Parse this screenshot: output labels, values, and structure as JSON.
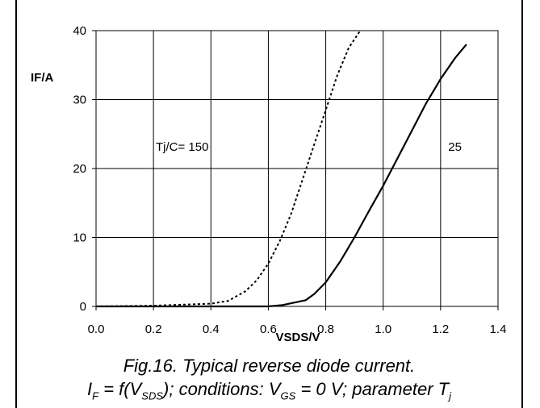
{
  "chart_data": {
    "type": "line",
    "xlabel": "VSDS/V",
    "ylabel": "IF/A",
    "xlim": [
      0,
      1.4
    ],
    "ylim": [
      0,
      40
    ],
    "x_ticks": [
      "0.0",
      "0.2",
      "0.4",
      "0.6",
      "0.8",
      "1.0",
      "1.2",
      "1.4"
    ],
    "y_ticks": [
      "0",
      "10",
      "20",
      "30",
      "40"
    ],
    "grid": true,
    "series": [
      {
        "name": "Tj/C= 150",
        "style": "dotted",
        "x": [
          0.0,
          0.2,
          0.4,
          0.46,
          0.52,
          0.56,
          0.6,
          0.64,
          0.68,
          0.72,
          0.76,
          0.8,
          0.84,
          0.88,
          0.92
        ],
        "y": [
          0,
          0.1,
          0.4,
          0.8,
          2.2,
          3.8,
          6.2,
          9.5,
          13.5,
          18.5,
          23.5,
          28.5,
          33.5,
          37.5,
          40
        ]
      },
      {
        "name": "25",
        "style": "solid",
        "x": [
          0.0,
          0.2,
          0.4,
          0.6,
          0.65,
          0.73,
          0.76,
          0.8,
          0.85,
          0.9,
          0.95,
          1.0,
          1.05,
          1.1,
          1.15,
          1.2,
          1.25,
          1.29
        ],
        "y": [
          0,
          0,
          0,
          0,
          0.2,
          0.9,
          1.8,
          3.5,
          6.5,
          10.0,
          13.8,
          17.5,
          21.5,
          25.5,
          29.5,
          33.0,
          36.0,
          38
        ]
      }
    ],
    "annotations": [
      {
        "text": "Tj/C= 150",
        "x": 0.3,
        "y": 22.6
      },
      {
        "text": "25",
        "x": 1.25,
        "y": 22.6
      }
    ]
  },
  "caption": {
    "line1": "Fig.16.   Typical reverse diode current.",
    "if_main": "I",
    "if_sub": "F",
    "eq1": " = f(V",
    "sds_sub": "SDS",
    "eq2": "); conditions: V",
    "gs_sub": "GS",
    "eq3": " = 0 V; parameter T",
    "tj_sub": "j"
  }
}
